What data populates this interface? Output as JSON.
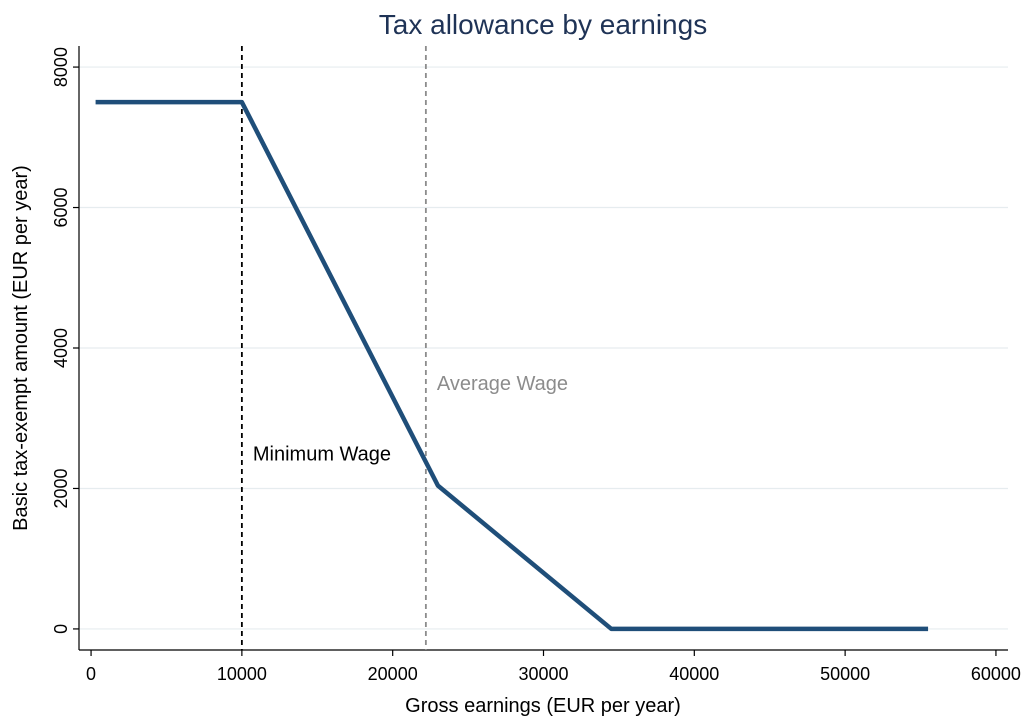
{
  "chart_data": {
    "type": "line",
    "title": "Tax allowance by earnings",
    "xlabel": "Gross earnings (EUR per year)",
    "ylabel": "Basic tax-exempt amount (EUR per year)",
    "xlim": [
      -800,
      60800
    ],
    "ylim": [
      -300,
      8300
    ],
    "xticks": [
      0,
      10000,
      20000,
      30000,
      40000,
      50000,
      60000
    ],
    "yticks": [
      0,
      2000,
      4000,
      6000,
      8000
    ],
    "grid": true,
    "series": [
      {
        "x": [
          300,
          10000,
          23000,
          34500,
          55500
        ],
        "y": [
          7500,
          7500,
          2040,
          0,
          0
        ],
        "color": "#1f4e79"
      }
    ],
    "reference_lines": [
      {
        "label": "Minimum Wage",
        "x": 10000,
        "color": "#000000",
        "label_y": 2500
      },
      {
        "label": "Average Wage",
        "x": 22200,
        "color": "#8c8c8c",
        "label_y": 3500
      }
    ]
  }
}
